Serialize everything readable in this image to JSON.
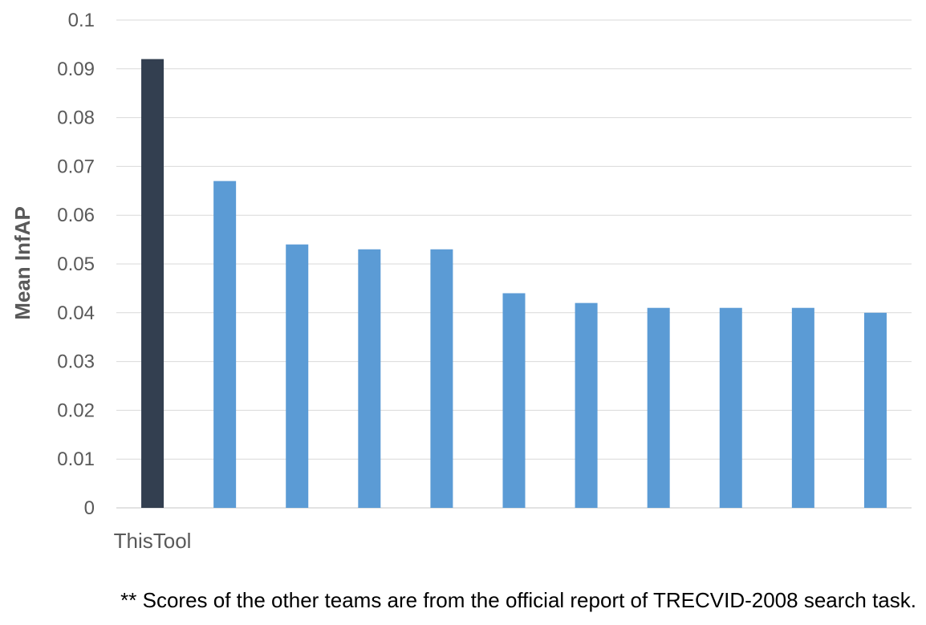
{
  "chart_data": {
    "type": "bar",
    "title": "",
    "xlabel": "",
    "ylabel": "Mean InfAP",
    "categories": [
      "ThisTool",
      "",
      "",
      "",
      "",
      "",
      "",
      "",
      "",
      "",
      ""
    ],
    "values": [
      0.092,
      0.067,
      0.054,
      0.053,
      0.053,
      0.044,
      0.042,
      0.041,
      0.041,
      0.041,
      0.04
    ],
    "ylim": [
      0,
      0.1
    ],
    "yticks": [
      "0",
      "0.01",
      "0.02",
      "0.03",
      "0.04",
      "0.05",
      "0.06",
      "0.07",
      "0.08",
      "0.09",
      "0.1"
    ],
    "grid": true,
    "legend": "none",
    "colors": {
      "highlight": "#333f50",
      "default": "#5b9bd5",
      "grid": "#d9d9d9",
      "axis_text": "#595959"
    }
  },
  "footnote": "** Scores of the other teams are from the official report of TRECVID-2008 search task."
}
